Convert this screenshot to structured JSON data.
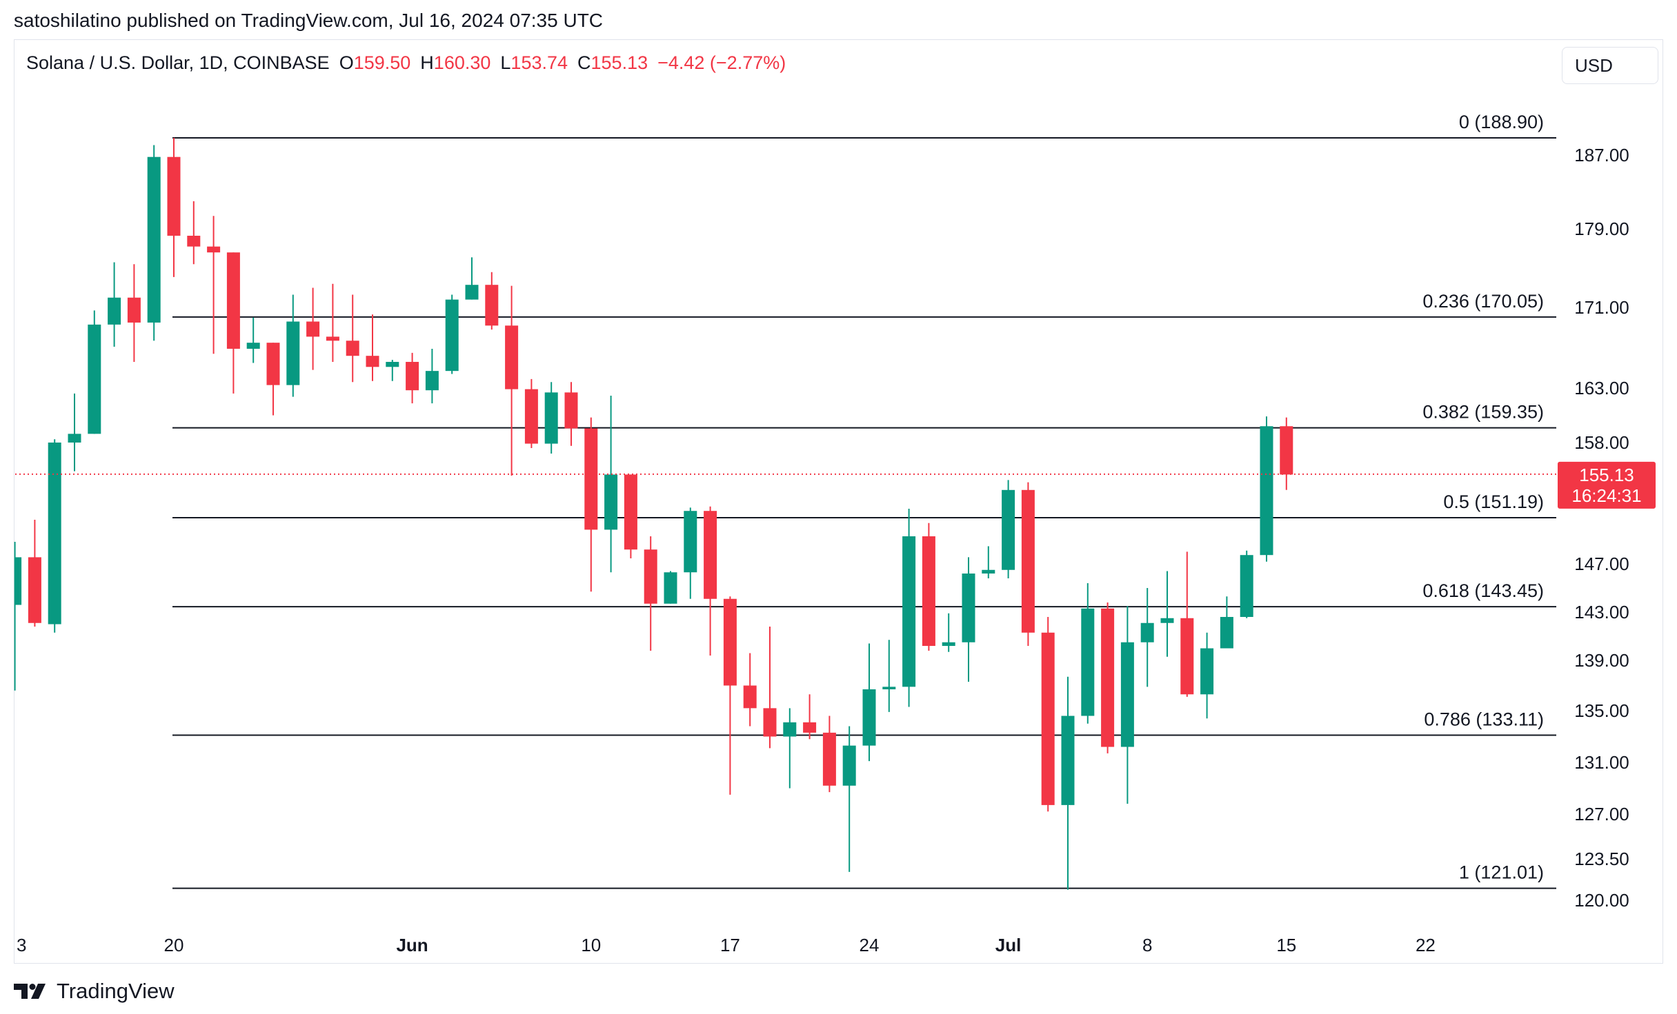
{
  "header": {
    "credit": "satoshilatino published on TradingView.com, Jul 16, 2024 07:35 UTC"
  },
  "legend": {
    "symbol": "Solana / U.S. Dollar, 1D, COINBASE",
    "o_label": "O",
    "o_value": "159.50",
    "h_label": "H",
    "h_value": "160.30",
    "l_label": "L",
    "l_value": "153.74",
    "c_label": "C",
    "c_value": "155.13",
    "change": "−4.42 (−2.77%)"
  },
  "currency_button": "USD",
  "price_badge": {
    "price": "155.13",
    "countdown": "16:24:31"
  },
  "footer": {
    "brand": "TradingView"
  },
  "colors": {
    "up": "#089981",
    "down": "#f23645",
    "fib_line": "#131722",
    "axis_text": "#131722",
    "grid_border": "#e0e3eb"
  },
  "chart_data": {
    "type": "candlestick",
    "title": "Solana / U.S. Dollar, 1D, COINBASE",
    "y_axis_ticks": [
      {
        "label": "187.00",
        "value": 187
      },
      {
        "label": "179.00",
        "value": 179
      },
      {
        "label": "171.00",
        "value": 171
      },
      {
        "label": "163.00",
        "value": 163
      },
      {
        "label": "158.00",
        "value": 158
      },
      {
        "label": "147.00",
        "value": 147
      },
      {
        "label": "143.00",
        "value": 143
      },
      {
        "label": "139.00",
        "value": 139
      },
      {
        "label": "135.00",
        "value": 135
      },
      {
        "label": "131.00",
        "value": 131
      },
      {
        "label": "127.00",
        "value": 127
      },
      {
        "label": "123.50",
        "value": 123.5
      },
      {
        "label": "120.00",
        "value": 120
      }
    ],
    "x_axis_ticks": [
      {
        "label": "3",
        "index": -8
      },
      {
        "label": "20",
        "index": 0
      },
      {
        "label": "Jun",
        "index": 12
      },
      {
        "label": "10",
        "index": 21
      },
      {
        "label": "17",
        "index": 28
      },
      {
        "label": "24",
        "index": 35
      },
      {
        "label": "Jul",
        "index": 42
      },
      {
        "label": "8",
        "index": 49
      },
      {
        "label": "15",
        "index": 56
      },
      {
        "label": "22",
        "index": 63
      }
    ],
    "fib_levels": [
      {
        "label": "0 (188.90)",
        "value": 188.9
      },
      {
        "label": "0.236 (170.05)",
        "value": 170.05
      },
      {
        "label": "0.382 (159.35)",
        "value": 159.35
      },
      {
        "label": "0.5 (151.19)",
        "value": 151.19
      },
      {
        "label": "0.618 (143.45)",
        "value": 143.45
      },
      {
        "label": "0.786 (133.11)",
        "value": 133.11
      },
      {
        "label": "1 (121.01)",
        "value": 121.01
      }
    ],
    "current_price": 155.13,
    "candles": [
      {
        "i": -8,
        "o": 143.6,
        "h": 149.0,
        "l": 136.6,
        "c": 147.6
      },
      {
        "i": -7,
        "o": 147.6,
        "h": 151.0,
        "l": 141.8,
        "c": 142.1
      },
      {
        "i": -6,
        "o": 142.0,
        "h": 158.3,
        "l": 141.3,
        "c": 158.0
      },
      {
        "i": -5,
        "o": 158.0,
        "h": 162.5,
        "l": 155.4,
        "c": 158.8
      },
      {
        "i": -4,
        "o": 158.8,
        "h": 170.7,
        "l": 158.8,
        "c": 169.3
      },
      {
        "i": -3,
        "o": 169.3,
        "h": 175.6,
        "l": 167.1,
        "c": 172.0
      },
      {
        "i": -2,
        "o": 172.0,
        "h": 175.4,
        "l": 165.6,
        "c": 169.5
      },
      {
        "i": -1,
        "o": 169.5,
        "h": 188.1,
        "l": 167.7,
        "c": 186.8
      },
      {
        "i": 0,
        "o": 186.8,
        "h": 188.9,
        "l": 174.1,
        "c": 178.3
      },
      {
        "i": 1,
        "o": 178.3,
        "h": 182.0,
        "l": 175.4,
        "c": 177.2
      },
      {
        "i": 2,
        "o": 177.2,
        "h": 180.4,
        "l": 166.4,
        "c": 176.6
      },
      {
        "i": 3,
        "o": 176.6,
        "h": 176.6,
        "l": 162.5,
        "c": 166.9
      },
      {
        "i": 4,
        "o": 166.9,
        "h": 170.0,
        "l": 165.5,
        "c": 167.5
      },
      {
        "i": 5,
        "o": 167.5,
        "h": 167.5,
        "l": 160.5,
        "c": 163.3
      },
      {
        "i": 6,
        "o": 163.3,
        "h": 172.3,
        "l": 162.2,
        "c": 169.6
      },
      {
        "i": 7,
        "o": 169.6,
        "h": 173.0,
        "l": 164.8,
        "c": 168.1
      },
      {
        "i": 8,
        "o": 168.1,
        "h": 173.4,
        "l": 165.6,
        "c": 167.7
      },
      {
        "i": 9,
        "o": 167.7,
        "h": 172.3,
        "l": 163.6,
        "c": 166.2
      },
      {
        "i": 10,
        "o": 166.2,
        "h": 170.3,
        "l": 163.7,
        "c": 165.1
      },
      {
        "i": 11,
        "o": 165.1,
        "h": 165.8,
        "l": 163.7,
        "c": 165.6
      },
      {
        "i": 12,
        "o": 165.6,
        "h": 166.5,
        "l": 161.6,
        "c": 162.8
      },
      {
        "i": 13,
        "o": 162.8,
        "h": 166.9,
        "l": 161.6,
        "c": 164.7
      },
      {
        "i": 14,
        "o": 164.7,
        "h": 172.3,
        "l": 164.4,
        "c": 171.8
      },
      {
        "i": 15,
        "o": 171.8,
        "h": 176.1,
        "l": 171.8,
        "c": 173.3
      },
      {
        "i": 16,
        "o": 173.3,
        "h": 174.6,
        "l": 168.8,
        "c": 169.2
      },
      {
        "i": 17,
        "o": 169.2,
        "h": 173.2,
        "l": 155.0,
        "c": 162.9
      },
      {
        "i": 18,
        "o": 162.9,
        "h": 163.9,
        "l": 157.5,
        "c": 157.9
      },
      {
        "i": 19,
        "o": 157.9,
        "h": 163.6,
        "l": 157.0,
        "c": 162.6
      },
      {
        "i": 20,
        "o": 162.6,
        "h": 163.6,
        "l": 157.7,
        "c": 159.3
      },
      {
        "i": 21,
        "o": 159.3,
        "h": 160.3,
        "l": 144.7,
        "c": 150.1
      },
      {
        "i": 22,
        "o": 150.1,
        "h": 162.3,
        "l": 146.3,
        "c": 155.1
      },
      {
        "i": 23,
        "o": 155.1,
        "h": 155.1,
        "l": 147.5,
        "c": 148.3
      },
      {
        "i": 24,
        "o": 148.3,
        "h": 149.5,
        "l": 139.8,
        "c": 143.7
      },
      {
        "i": 25,
        "o": 143.7,
        "h": 146.4,
        "l": 143.7,
        "c": 146.3
      },
      {
        "i": 26,
        "o": 146.3,
        "h": 152.1,
        "l": 144.1,
        "c": 151.8
      },
      {
        "i": 27,
        "o": 151.8,
        "h": 152.2,
        "l": 139.4,
        "c": 144.1
      },
      {
        "i": 28,
        "o": 144.1,
        "h": 144.3,
        "l": 128.5,
        "c": 137.0
      },
      {
        "i": 29,
        "o": 137.0,
        "h": 139.6,
        "l": 133.8,
        "c": 135.2
      },
      {
        "i": 30,
        "o": 135.2,
        "h": 141.8,
        "l": 132.1,
        "c": 133.0
      },
      {
        "i": 31,
        "o": 133.0,
        "h": 135.2,
        "l": 129.0,
        "c": 134.1
      },
      {
        "i": 32,
        "o": 134.1,
        "h": 136.3,
        "l": 132.8,
        "c": 133.3
      },
      {
        "i": 33,
        "o": 133.3,
        "h": 134.6,
        "l": 128.7,
        "c": 129.2
      },
      {
        "i": 34,
        "o": 129.2,
        "h": 133.8,
        "l": 122.4,
        "c": 132.3
      },
      {
        "i": 35,
        "o": 132.3,
        "h": 140.4,
        "l": 131.1,
        "c": 136.7
      },
      {
        "i": 36,
        "o": 136.7,
        "h": 140.7,
        "l": 134.9,
        "c": 136.9
      },
      {
        "i": 37,
        "o": 136.9,
        "h": 152.0,
        "l": 135.3,
        "c": 149.5
      },
      {
        "i": 38,
        "o": 149.5,
        "h": 150.7,
        "l": 139.8,
        "c": 140.2
      },
      {
        "i": 39,
        "o": 140.2,
        "h": 142.9,
        "l": 139.7,
        "c": 140.5
      },
      {
        "i": 40,
        "o": 140.5,
        "h": 147.6,
        "l": 137.3,
        "c": 146.2
      },
      {
        "i": 41,
        "o": 146.2,
        "h": 148.6,
        "l": 145.8,
        "c": 146.5
      },
      {
        "i": 42,
        "o": 146.5,
        "h": 154.6,
        "l": 145.8,
        "c": 153.7
      },
      {
        "i": 43,
        "o": 153.7,
        "h": 154.4,
        "l": 140.2,
        "c": 141.3
      },
      {
        "i": 44,
        "o": 141.3,
        "h": 142.6,
        "l": 127.2,
        "c": 127.7
      },
      {
        "i": 45,
        "o": 127.7,
        "h": 137.7,
        "l": 120.9,
        "c": 134.6
      },
      {
        "i": 46,
        "o": 134.6,
        "h": 145.4,
        "l": 134.0,
        "c": 143.3
      },
      {
        "i": 47,
        "o": 143.3,
        "h": 143.8,
        "l": 131.7,
        "c": 132.2
      },
      {
        "i": 48,
        "o": 132.2,
        "h": 143.5,
        "l": 127.8,
        "c": 140.5
      },
      {
        "i": 49,
        "o": 140.5,
        "h": 145.0,
        "l": 136.9,
        "c": 142.1
      },
      {
        "i": 50,
        "o": 142.1,
        "h": 146.4,
        "l": 139.3,
        "c": 142.5
      },
      {
        "i": 51,
        "o": 142.5,
        "h": 148.1,
        "l": 136.1,
        "c": 136.3
      },
      {
        "i": 52,
        "o": 136.3,
        "h": 141.3,
        "l": 134.4,
        "c": 140.0
      },
      {
        "i": 53,
        "o": 140.0,
        "h": 144.3,
        "l": 140.0,
        "c": 142.6
      },
      {
        "i": 54,
        "o": 142.6,
        "h": 148.2,
        "l": 142.5,
        "c": 147.8
      },
      {
        "i": 55,
        "o": 147.8,
        "h": 160.4,
        "l": 147.2,
        "c": 159.5
      },
      {
        "i": 56,
        "o": 159.5,
        "h": 160.3,
        "l": 153.7,
        "c": 155.1
      }
    ]
  }
}
